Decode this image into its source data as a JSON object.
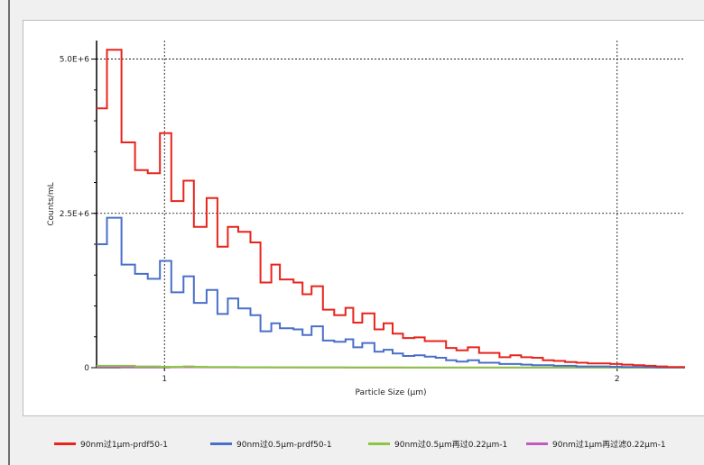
{
  "chart_data": {
    "type": "line",
    "xlabel": "Particle Size (µm)",
    "ylabel": "Counts/mL",
    "xlim": [
      0.85,
      2.15
    ],
    "ylim": [
      0,
      5300000
    ],
    "x_ticks": [
      1,
      2
    ],
    "x_tick_labels": [
      "1",
      "2"
    ],
    "y_ticks": [
      0,
      2500000,
      5000000
    ],
    "y_tick_labels": [
      "0",
      "2.5E+6",
      "5.0E+6"
    ],
    "grid": true,
    "legend_position": "bottom",
    "bin_edges": [
      0.85,
      0.873,
      0.905,
      0.935,
      0.963,
      0.99,
      1.015,
      1.042,
      1.065,
      1.093,
      1.117,
      1.14,
      1.163,
      1.19,
      1.212,
      1.236,
      1.255,
      1.285,
      1.305,
      1.325,
      1.35,
      1.375,
      1.4,
      1.417,
      1.437,
      1.464,
      1.484,
      1.504,
      1.527,
      1.552,
      1.575,
      1.599,
      1.622,
      1.645,
      1.67,
      1.695,
      1.718,
      1.74,
      1.764,
      1.788,
      1.812,
      1.836,
      1.86,
      1.885,
      1.91,
      1.935,
      1.96,
      1.985,
      2.01,
      2.035,
      2.06,
      2.085,
      2.11,
      2.15
    ],
    "series": [
      {
        "name": "90nm过1µm-prdf50-1",
        "color": "#e8241c",
        "values": [
          4200000,
          5150000,
          3650000,
          3200000,
          3150000,
          3800000,
          2700000,
          3030000,
          2280000,
          2750000,
          1960000,
          2280000,
          2200000,
          2030000,
          1380000,
          1670000,
          1430000,
          1380000,
          1190000,
          1320000,
          940000,
          850000,
          970000,
          730000,
          880000,
          620000,
          720000,
          550000,
          480000,
          490000,
          430000,
          430000,
          320000,
          280000,
          330000,
          240000,
          240000,
          170000,
          200000,
          170000,
          160000,
          120000,
          110000,
          90000,
          80000,
          70000,
          70000,
          60000,
          50000,
          40000,
          30000,
          20000,
          10000
        ]
      },
      {
        "name": "90nm过0.5µm-prdf50-1",
        "color": "#4a6fc8",
        "values": [
          2000000,
          2430000,
          1670000,
          1520000,
          1440000,
          1730000,
          1220000,
          1480000,
          1050000,
          1260000,
          870000,
          1120000,
          960000,
          850000,
          590000,
          720000,
          640000,
          620000,
          530000,
          670000,
          440000,
          420000,
          460000,
          330000,
          400000,
          260000,
          290000,
          230000,
          190000,
          200000,
          180000,
          160000,
          120000,
          100000,
          120000,
          80000,
          80000,
          60000,
          60000,
          50000,
          40000,
          40000,
          30000,
          30000,
          20000,
          20000,
          20000,
          15000,
          10000,
          10000,
          8000,
          5000,
          3000
        ]
      },
      {
        "name": "90nm过0.5µm再过0.22µm-1",
        "color": "#8cc444",
        "values": [
          30000,
          30000,
          30000,
          20000,
          20000,
          15000,
          15000,
          20000,
          15000,
          10000,
          10000,
          10000,
          8000,
          8000,
          8000,
          6000,
          6000,
          6000,
          5000,
          5000,
          5000,
          4000,
          4000,
          4000,
          3000,
          3000,
          3000,
          3000,
          2000,
          2000,
          2000,
          2000,
          2000,
          2000,
          1000,
          1000,
          1000,
          1000,
          1000,
          1000,
          1000,
          1000,
          1000,
          1000,
          1000,
          500,
          500,
          500,
          500,
          500,
          500,
          500,
          500
        ]
      },
      {
        "name": "90nm过1µm再过滤0.22µm-1",
        "color": "#c05ac0",
        "values": [
          15000,
          15000,
          12000,
          12000,
          10000,
          10000,
          8000,
          8000,
          8000,
          6000,
          6000,
          6000,
          5000,
          5000,
          5000,
          4000,
          4000,
          4000,
          3000,
          3000,
          3000,
          3000,
          2000,
          2000,
          2000,
          2000,
          2000,
          2000,
          1500,
          1500,
          1500,
          1500,
          1000,
          1000,
          1000,
          1000,
          1000,
          1000,
          1000,
          1000,
          1000,
          800,
          800,
          800,
          800,
          500,
          500,
          500,
          500,
          500,
          500,
          500,
          500
        ]
      }
    ]
  }
}
